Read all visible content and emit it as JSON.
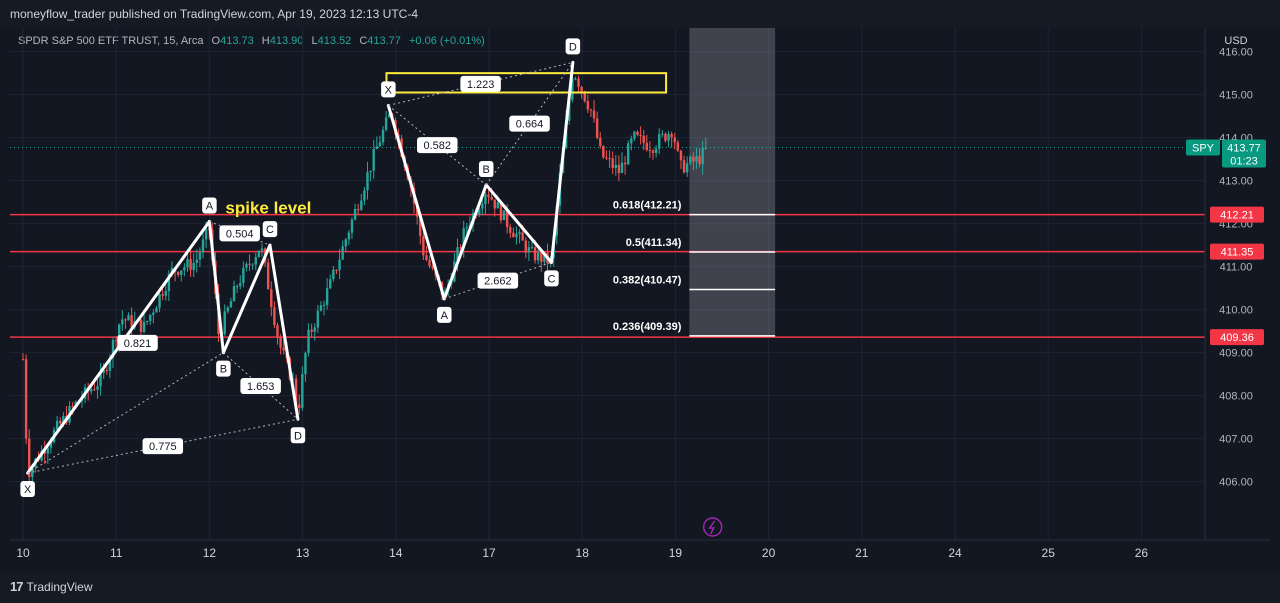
{
  "header": {
    "published": "moneyflow_trader published on TradingView.com, Apr 19, 2023 12:13 UTC-4"
  },
  "symbol": {
    "name": "SPDR S&P 500 ETF TRUST, 15, Arca",
    "open_label": "O",
    "open": "413.73",
    "high_label": "H",
    "high": "413.90",
    "low_label": "L",
    "low": "413.52",
    "close_label": "C",
    "close": "413.77",
    "change": "+0.06 (+0.01%)"
  },
  "footer": {
    "brand": "TradingView"
  },
  "colors": {
    "background": "#131722",
    "grid": "#1f2433",
    "up": "#26a69a",
    "down": "#ef5350",
    "level": "#f23645",
    "pattern": "#ffffff",
    "highlight": "#ffeb3b"
  },
  "chart_data": {
    "type": "candlestick",
    "currency": "USD",
    "ylim": [
      405.55,
      416.55
    ],
    "y_ticks": [
      "416.00",
      "415.00",
      "414.00",
      "413.00",
      "412.00",
      "411.00",
      "410.00",
      "409.00",
      "408.00",
      "407.00",
      "406.00"
    ],
    "x_ticks": [
      "10",
      "11",
      "12",
      "13",
      "14",
      "17",
      "18",
      "19",
      "20",
      "21",
      "24",
      "25",
      "26"
    ],
    "last_price": {
      "symbol": "SPY",
      "price": "413.77",
      "countdown": "01:23"
    },
    "annotation_text": "spike level",
    "horizontal_levels": [
      {
        "price": 412.21,
        "label": "412.21"
      },
      {
        "price": 411.35,
        "label": "411.35"
      },
      {
        "price": 409.36,
        "label": "409.36"
      }
    ],
    "fib_levels": [
      {
        "ratio": "0.618",
        "price": 412.21,
        "label": "0.618(412.21)"
      },
      {
        "ratio": "0.5",
        "price": 411.34,
        "label": "0.5(411.34)"
      },
      {
        "ratio": "0.382",
        "price": 410.47,
        "label": "0.382(410.47)"
      },
      {
        "ratio": "0.236",
        "price": 409.39,
        "label": "0.236(409.39)"
      }
    ],
    "patterns": [
      {
        "points": [
          {
            "name": "X",
            "day": 10.05,
            "price": 406.2
          },
          {
            "name": "A",
            "day": 12.0,
            "price": 412.05
          },
          {
            "name": "B",
            "day": 12.15,
            "price": 409.0
          },
          {
            "name": "C",
            "day": 12.65,
            "price": 411.5
          },
          {
            "name": "D",
            "day": 12.95,
            "price": 407.45
          }
        ],
        "ratios": [
          "0.821",
          "0.504",
          "1.653",
          "0.775"
        ]
      },
      {
        "points": [
          {
            "name": "X",
            "day": 13.92,
            "price": 414.75
          },
          {
            "name": "A",
            "day": 14.52,
            "price": 410.25
          },
          {
            "name": "B",
            "day": 14.97,
            "price": 412.9
          },
          {
            "name": "C",
            "day": 15.67,
            "price": 411.1
          },
          {
            "name": "D",
            "day": 15.9,
            "price": 415.75
          }
        ],
        "ratios": [
          "0.582",
          "2.662",
          "0.664",
          "1.223"
        ]
      }
    ],
    "trajectory": [
      [
        10.0,
        408.85
      ],
      [
        10.05,
        406.2
      ],
      [
        10.35,
        407.2
      ],
      [
        10.6,
        407.9
      ],
      [
        10.85,
        408.4
      ],
      [
        11.05,
        409.8
      ],
      [
        11.3,
        409.6
      ],
      [
        11.6,
        410.9
      ],
      [
        11.85,
        411.1
      ],
      [
        12.0,
        411.9
      ],
      [
        12.1,
        409.4
      ],
      [
        12.3,
        410.6
      ],
      [
        12.55,
        411.5
      ],
      [
        12.75,
        409.2
      ],
      [
        12.9,
        408.3
      ],
      [
        12.95,
        407.6
      ],
      [
        13.05,
        409.3
      ],
      [
        13.3,
        410.6
      ],
      [
        13.55,
        412.2
      ],
      [
        13.8,
        413.8
      ],
      [
        13.95,
        414.6
      ],
      [
        14.15,
        413.0
      ],
      [
        14.3,
        411.3
      ],
      [
        14.52,
        410.3
      ],
      [
        14.75,
        411.9
      ],
      [
        14.97,
        412.8
      ],
      [
        15.2,
        412.0
      ],
      [
        15.45,
        411.3
      ],
      [
        15.67,
        411.1
      ],
      [
        15.75,
        412.9
      ],
      [
        15.9,
        415.6
      ],
      [
        16.1,
        414.6
      ],
      [
        16.2,
        413.6
      ],
      [
        16.4,
        413.2
      ],
      [
        16.55,
        414.0
      ],
      [
        16.75,
        413.8
      ],
      [
        16.97,
        414.2
      ],
      [
        17.05,
        413.3
      ],
      [
        17.25,
        413.5
      ],
      [
        17.35,
        413.77
      ]
    ]
  }
}
